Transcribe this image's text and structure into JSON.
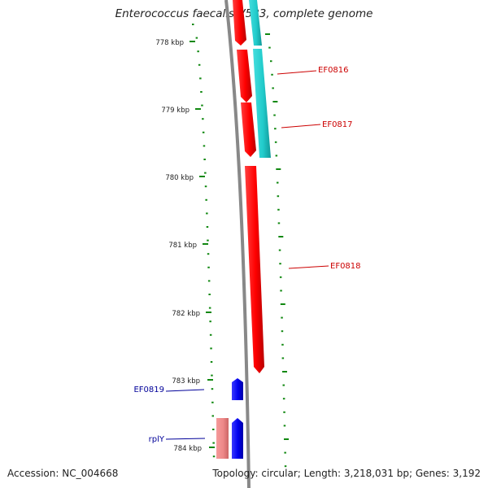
{
  "title": "Enterococcus faecalis V583, complete genome",
  "footer": {
    "accession": "Accession: NC_004668",
    "topology": "Topology: circular; Length: 3,218,031 bp; Genes: 3,192"
  },
  "ruler": {
    "ticks": [
      {
        "label": "778 kbp",
        "kbp": 778
      },
      {
        "label": "779 kbp",
        "kbp": 779
      },
      {
        "label": "780 kbp",
        "kbp": 780
      },
      {
        "label": "781 kbp",
        "kbp": 781
      },
      {
        "label": "782 kbp",
        "kbp": 782
      },
      {
        "label": "783 kbp",
        "kbp": 783
      },
      {
        "label": "784 kbp",
        "kbp": 784
      }
    ]
  },
  "genes": [
    {
      "name": "EF0816",
      "strand": "reverse",
      "color": "#ff0000"
    },
    {
      "name": "EF0817",
      "strand": "reverse",
      "color": "#ff0000"
    },
    {
      "name": "EF0818",
      "strand": "reverse",
      "color": "#ff0000"
    },
    {
      "name": "EF0819",
      "strand": "forward",
      "color": "#0000ff"
    },
    {
      "name": "rplY",
      "strand": "forward",
      "color": "#0000ff"
    }
  ],
  "colors": {
    "reverse_gene": "#ff0000",
    "forward_gene": "#0000ff",
    "cds_band": "#22cccc",
    "rna_band": "#ee8888",
    "backbone": "#888888",
    "tick": "#118811",
    "reverse_label": "#cc0000",
    "forward_label": "#000099"
  }
}
